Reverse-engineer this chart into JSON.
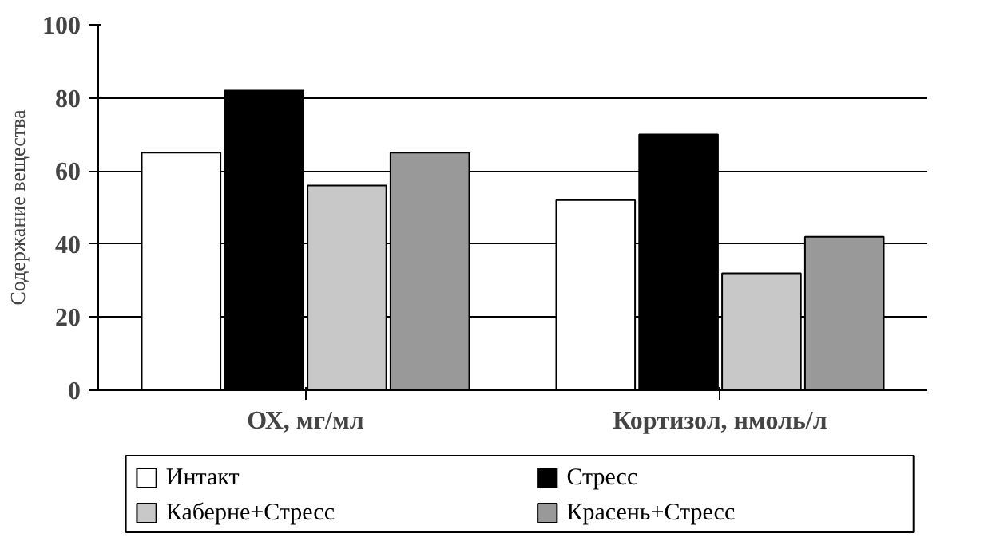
{
  "chart_data": {
    "type": "bar",
    "ylabel": "Содержание вещества",
    "categories": [
      "ОХ, мг/мл",
      "Кортизол, нмоль/л"
    ],
    "series": [
      {
        "name": "Интакт",
        "color": "#ffffff",
        "values": [
          65,
          52
        ]
      },
      {
        "name": "Стресс",
        "color": "#000000",
        "values": [
          82,
          70
        ]
      },
      {
        "name": "Каберне+Стресс",
        "color": "#c8c8c8",
        "values": [
          56,
          32
        ]
      },
      {
        "name": "Красень+Стресс",
        "color": "#999999",
        "values": [
          65,
          42
        ]
      }
    ],
    "ylim": [
      0,
      100
    ],
    "yticks": [
      0,
      20,
      40,
      60,
      80,
      100
    ],
    "grid": "y",
    "legend": "bottom"
  }
}
